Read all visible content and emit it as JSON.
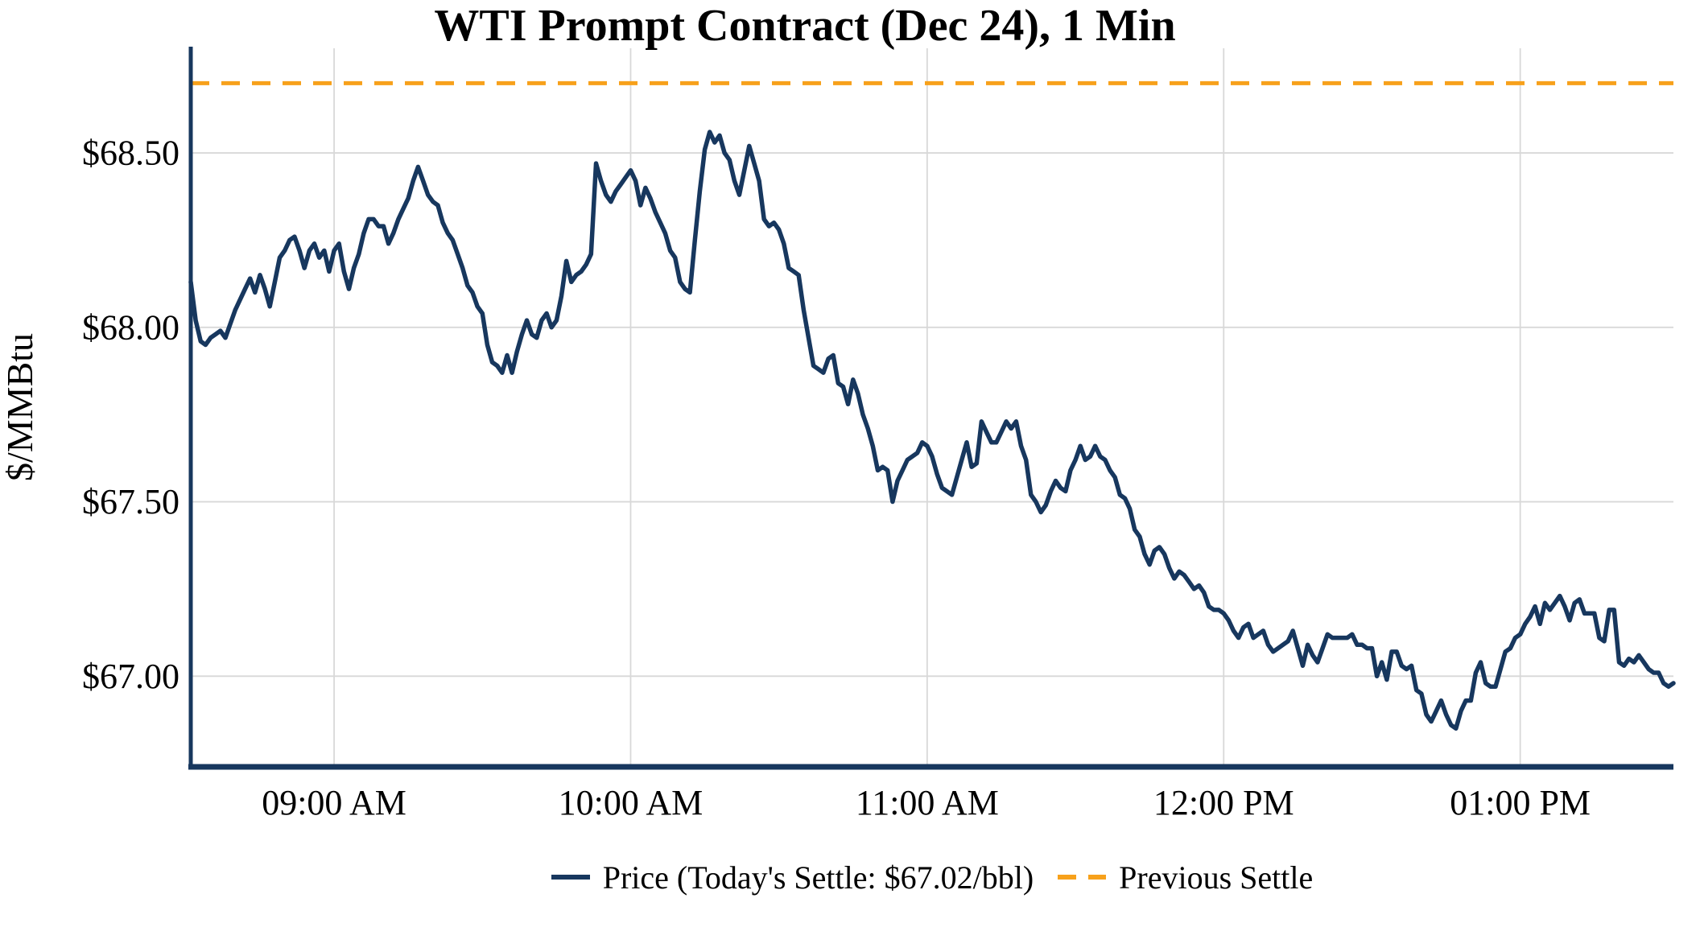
{
  "title": "WTI Prompt Contract (Dec 24), 1 Min",
  "y_axis_label": "$/MMBtu",
  "legend": {
    "price_label": "Price (Today's Settle: $67.02/bbl)",
    "previous_settle_label": "Previous Settle"
  },
  "colors": {
    "price_line": "#17375E",
    "previous_settle_line": "#F7A11B",
    "grid": "#D8D8D8",
    "axis": "#17375E",
    "text": "#000000",
    "background": "#FFFFFF"
  },
  "chart_data": {
    "type": "line",
    "title": "WTI Prompt Contract (Dec 24), 1 Min",
    "xlabel": "",
    "ylabel": "$/MMBtu",
    "grid": true,
    "legend_position": "bottom",
    "x_start_time": "08:31 AM",
    "x_end_time": "01:31 PM",
    "interval_minutes": 1,
    "x_ticks": [
      {
        "label": "09:00 AM",
        "minute": 29
      },
      {
        "label": "10:00 AM",
        "minute": 89
      },
      {
        "label": "11:00 AM",
        "minute": 149
      },
      {
        "label": "12:00 PM",
        "minute": 209
      },
      {
        "label": "01:00 PM",
        "minute": 269
      }
    ],
    "y_ticks": [
      {
        "label": "$67.00",
        "value": 67.0
      },
      {
        "label": "$67.50",
        "value": 67.5
      },
      {
        "label": "$68.00",
        "value": 68.0
      },
      {
        "label": "$68.50",
        "value": 68.5
      }
    ],
    "y_domain": [
      66.74,
      68.8
    ],
    "previous_settle": 68.7,
    "todays_settle": 67.02,
    "series": [
      {
        "name": "Price",
        "values": [
          68.13,
          68.02,
          67.96,
          67.95,
          67.97,
          67.98,
          67.99,
          67.97,
          68.01,
          68.05,
          68.08,
          68.11,
          68.14,
          68.1,
          68.15,
          68.11,
          68.06,
          68.13,
          68.2,
          68.22,
          68.25,
          68.26,
          68.22,
          68.17,
          68.22,
          68.24,
          68.2,
          68.22,
          68.16,
          68.22,
          68.24,
          68.16,
          68.11,
          68.17,
          68.21,
          68.27,
          68.31,
          68.31,
          68.29,
          68.29,
          68.24,
          68.27,
          68.31,
          68.34,
          68.37,
          68.42,
          68.46,
          68.42,
          68.38,
          68.36,
          68.35,
          68.3,
          68.27,
          68.25,
          68.21,
          68.17,
          68.12,
          68.1,
          68.06,
          68.04,
          67.95,
          67.9,
          67.89,
          67.87,
          67.92,
          67.87,
          67.93,
          67.98,
          68.02,
          67.98,
          67.97,
          68.02,
          68.04,
          68.0,
          68.02,
          68.09,
          68.19,
          68.13,
          68.15,
          68.16,
          68.18,
          68.21,
          68.47,
          68.42,
          68.38,
          68.36,
          68.39,
          68.41,
          68.43,
          68.45,
          68.42,
          68.35,
          68.4,
          68.37,
          68.33,
          68.3,
          68.27,
          68.22,
          68.2,
          68.13,
          68.11,
          68.1,
          68.25,
          68.39,
          68.51,
          68.56,
          68.53,
          68.55,
          68.5,
          68.48,
          68.42,
          68.38,
          68.45,
          68.52,
          68.47,
          68.42,
          68.31,
          68.29,
          68.3,
          68.28,
          68.24,
          68.17,
          68.16,
          68.15,
          68.05,
          67.97,
          67.89,
          67.88,
          67.87,
          67.91,
          67.92,
          67.84,
          67.83,
          67.78,
          67.85,
          67.81,
          67.75,
          67.71,
          67.66,
          67.59,
          67.6,
          67.59,
          67.5,
          67.56,
          67.59,
          67.62,
          67.63,
          67.64,
          67.67,
          67.66,
          67.63,
          67.58,
          67.54,
          67.53,
          67.52,
          67.57,
          67.62,
          67.67,
          67.6,
          67.61,
          67.73,
          67.7,
          67.67,
          67.67,
          67.7,
          67.73,
          67.71,
          67.73,
          67.66,
          67.62,
          67.52,
          67.5,
          67.47,
          67.49,
          67.53,
          67.56,
          67.54,
          67.53,
          67.59,
          67.62,
          67.66,
          67.62,
          67.63,
          67.66,
          67.63,
          67.62,
          67.59,
          67.57,
          67.52,
          67.51,
          67.48,
          67.42,
          67.4,
          67.35,
          67.32,
          67.36,
          67.37,
          67.35,
          67.31,
          67.28,
          67.3,
          67.29,
          67.27,
          67.25,
          67.26,
          67.24,
          67.2,
          67.19,
          67.19,
          67.18,
          67.16,
          67.13,
          67.11,
          67.14,
          67.15,
          67.11,
          67.12,
          67.13,
          67.09,
          67.07,
          67.08,
          67.09,
          67.1,
          67.13,
          67.08,
          67.03,
          67.09,
          67.06,
          67.04,
          67.08,
          67.12,
          67.11,
          67.11,
          67.11,
          67.11,
          67.12,
          67.09,
          67.09,
          67.08,
          67.08,
          67.0,
          67.04,
          66.99,
          67.07,
          67.07,
          67.03,
          67.02,
          67.03,
          66.96,
          66.95,
          66.89,
          66.87,
          66.9,
          66.93,
          66.89,
          66.86,
          66.85,
          66.9,
          66.93,
          66.93,
          67.01,
          67.04,
          66.98,
          66.97,
          66.97,
          67.02,
          67.07,
          67.08,
          67.11,
          67.12,
          67.15,
          67.17,
          67.2,
          67.15,
          67.21,
          67.19,
          67.21,
          67.23,
          67.2,
          67.16,
          67.21,
          67.22,
          67.18,
          67.18,
          67.18,
          67.11,
          67.1,
          67.19,
          67.19,
          67.04,
          67.03,
          67.05,
          67.04,
          67.06,
          67.04,
          67.02,
          67.01,
          67.01,
          66.98,
          66.97,
          66.98
        ]
      }
    ]
  }
}
